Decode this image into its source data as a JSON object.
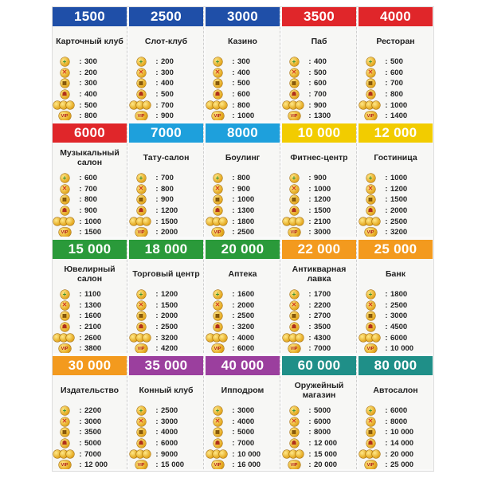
{
  "rent_icon_names": [
    "plus-coin-icon",
    "cross-coin-icon",
    "grid-coin-icon",
    "mask-coin-icon",
    "coin-cluster-icon",
    "vip-coin-icon"
  ],
  "rows": [
    {
      "cards": [
        {
          "price": "1500",
          "color": "#1f4fa8",
          "name": "Карточный клуб",
          "rents": [
            "300",
            "200",
            "300",
            "400",
            "500",
            "800"
          ]
        },
        {
          "price": "2500",
          "color": "#1f4fa8",
          "name": "Слот-клуб",
          "rents": [
            "200",
            "300",
            "400",
            "500",
            "700",
            "900"
          ]
        },
        {
          "price": "3000",
          "color": "#1f4fa8",
          "name": "Казино",
          "rents": [
            "300",
            "400",
            "500",
            "600",
            "800",
            "1000"
          ]
        },
        {
          "price": "3500",
          "color": "#e0262a",
          "name": "Паб",
          "rents": [
            "400",
            "500",
            "600",
            "700",
            "900",
            "1300"
          ]
        },
        {
          "price": "4000",
          "color": "#e0262a",
          "name": "Ресторан",
          "rents": [
            "500",
            "600",
            "700",
            "800",
            "1000",
            "1400"
          ]
        }
      ]
    },
    {
      "cards": [
        {
          "price": "6000",
          "color": "#e0262a",
          "name": "Музыкальный салон",
          "rents": [
            "600",
            "700",
            "800",
            "900",
            "1000",
            "1500"
          ]
        },
        {
          "price": "7000",
          "color": "#1ea0dc",
          "name": "Тату-салон",
          "rents": [
            "700",
            "800",
            "900",
            "1200",
            "1500",
            "2000"
          ]
        },
        {
          "price": "8000",
          "color": "#1ea0dc",
          "name": "Боулинг",
          "rents": [
            "800",
            "900",
            "1000",
            "1300",
            "1800",
            "2500"
          ]
        },
        {
          "price": "10 000",
          "color": "#f2cc00",
          "name": "Фитнес-центр",
          "rents": [
            "900",
            "1000",
            "1200",
            "1500",
            "2100",
            "3000"
          ]
        },
        {
          "price": "12 000",
          "color": "#f2cc00",
          "name": "Гостиница",
          "rents": [
            "1000",
            "1200",
            "1500",
            "2000",
            "2500",
            "3200"
          ]
        }
      ]
    },
    {
      "cards": [
        {
          "price": "15 000",
          "color": "#2a9a3a",
          "name": "Ювелирный салон",
          "rents": [
            "1100",
            "1300",
            "1600",
            "2100",
            "2600",
            "3800"
          ]
        },
        {
          "price": "18 000",
          "color": "#2a9a3a",
          "name": "Торговый центр",
          "rents": [
            "1200",
            "1500",
            "2000",
            "2500",
            "3200",
            "4200"
          ]
        },
        {
          "price": "20 000",
          "color": "#2a9a3a",
          "name": "Аптека",
          "rents": [
            "1600",
            "2000",
            "2500",
            "3200",
            "4000",
            "6000"
          ]
        },
        {
          "price": "22 000",
          "color": "#f39a1e",
          "name": "Антикварная лавка",
          "rents": [
            "1700",
            "2200",
            "2700",
            "3500",
            "4300",
            "7000"
          ]
        },
        {
          "price": "25 000",
          "color": "#f39a1e",
          "name": "Банк",
          "rents": [
            "1800",
            "2500",
            "3000",
            "4500",
            "6000",
            "10 000"
          ]
        }
      ]
    },
    {
      "cards": [
        {
          "price": "30 000",
          "color": "#f39a1e",
          "name": "Издательство",
          "rents": [
            "2200",
            "3000",
            "3500",
            "5000",
            "7000",
            "12 000"
          ]
        },
        {
          "price": "35 000",
          "color": "#9b3f9e",
          "name": "Конный клуб",
          "rents": [
            "2500",
            "3000",
            "4000",
            "6000",
            "9000",
            "15 000"
          ]
        },
        {
          "price": "40 000",
          "color": "#9b3f9e",
          "name": "Ипподром",
          "rents": [
            "3000",
            "4000",
            "5000",
            "7000",
            "10 000",
            "16 000"
          ]
        },
        {
          "price": "60 000",
          "color": "#1f8f88",
          "name": "Оружейный магазин",
          "rents": [
            "5000",
            "6000",
            "8000",
            "12 000",
            "15 000",
            "20 000"
          ]
        },
        {
          "price": "80 000",
          "color": "#1f8f88",
          "name": "Автосалон",
          "rents": [
            "6000",
            "8000",
            "10 000",
            "14 000",
            "20 000",
            "25 000"
          ]
        }
      ]
    }
  ]
}
